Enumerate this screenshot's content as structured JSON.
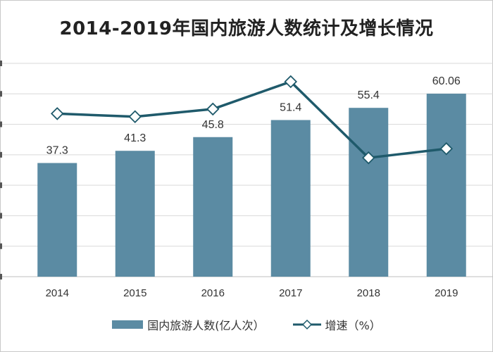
{
  "chart_data": {
    "type": "bar",
    "title": "2014-2019年国内旅游人数统计及增长情况",
    "categories": [
      "2014",
      "2015",
      "2016",
      "2017",
      "2018",
      "2019"
    ],
    "series": [
      {
        "name": "国内旅游人数(亿人次）",
        "type": "bar",
        "values": [
          37.3,
          41.3,
          45.8,
          51.4,
          55.4,
          60.06
        ],
        "data_labels": [
          "37.3",
          "41.3",
          "45.8",
          "51.4",
          "55.4",
          "60.06"
        ],
        "color": "#5b8ba3"
      },
      {
        "name": "增速（%）",
        "type": "line",
        "marker": "diamond",
        "values": [
          10.7,
          10.5,
          11.0,
          12.8,
          7.8,
          8.4
        ],
        "color": "#1f5a6b"
      }
    ],
    "ylim": [
      0,
      70
    ],
    "grid": true,
    "legend_position": "bottom"
  }
}
